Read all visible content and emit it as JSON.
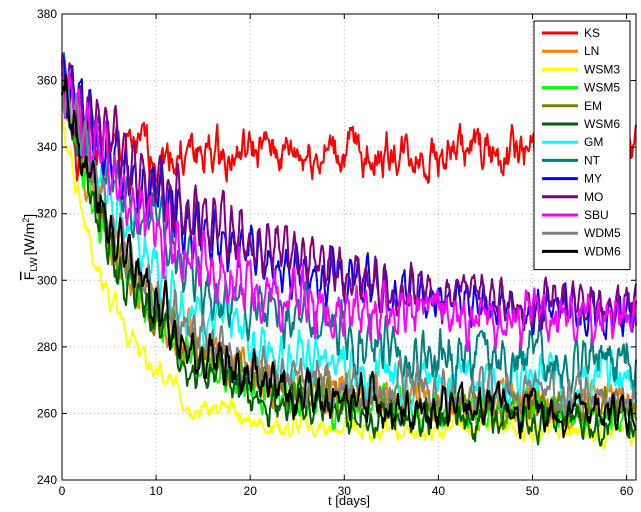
{
  "chart_data": {
    "type": "line",
    "xlabel": "t [days]",
    "ylabel": "F̄_LW [W/m²]",
    "ylabel_parts": {
      "main": "F",
      "sub": "LW",
      "unit": "[W/m",
      "sup": "2",
      "close": "]"
    },
    "xlim": [
      0,
      61
    ],
    "ylim": [
      240,
      380
    ],
    "xticks": [
      "0",
      "10",
      "20",
      "30",
      "40",
      "50",
      "60"
    ],
    "yticks": [
      "240",
      "260",
      "280",
      "300",
      "320",
      "340",
      "360",
      "380"
    ],
    "grid": true,
    "legend_position": "top-right",
    "series": [
      {
        "name": "KS",
        "color": "#ff0000",
        "start": 365,
        "end": 338,
        "tau": 0.6,
        "amp": 4.5,
        "osc": 1.5
      },
      {
        "name": "LN",
        "color": "#ff8000",
        "start": 362,
        "end": 263,
        "tau": 8,
        "amp": 3.5,
        "osc": 5
      },
      {
        "name": "WSM3",
        "color": "#ffff00",
        "start": 348,
        "end": 255,
        "tau": 6,
        "amp": 2.0,
        "osc": 2
      },
      {
        "name": "WSM5",
        "color": "#00ff00",
        "start": 360,
        "end": 260,
        "tau": 8,
        "amp": 3.0,
        "osc": 5
      },
      {
        "name": "EM",
        "color": "#808000",
        "start": 360,
        "end": 262,
        "tau": 8,
        "amp": 3.0,
        "osc": 4
      },
      {
        "name": "WSM6",
        "color": "#006000",
        "start": 360,
        "end": 258,
        "tau": 8,
        "amp": 3.0,
        "osc": 5
      },
      {
        "name": "GM",
        "color": "#00ffff",
        "start": 362,
        "end": 270,
        "tau": 10,
        "amp": 4.0,
        "osc": 5
      },
      {
        "name": "NT",
        "color": "#008080",
        "start": 362,
        "end": 275,
        "tau": 12,
        "amp": 4.5,
        "osc": 6
      },
      {
        "name": "MY",
        "color": "#0000ff",
        "start": 360,
        "end": 289,
        "tau": 15,
        "amp": 3.0,
        "osc": 8
      },
      {
        "name": "MO",
        "color": "#800080",
        "start": 360,
        "end": 288,
        "tau": 18,
        "amp": 3.0,
        "osc": 9
      },
      {
        "name": "SBU",
        "color": "#ff00ff",
        "start": 362,
        "end": 288,
        "tau": 10,
        "amp": 4.0,
        "osc": 7
      },
      {
        "name": "WDM5",
        "color": "#808080",
        "start": 360,
        "end": 265,
        "tau": 9,
        "amp": 3.5,
        "osc": 5
      },
      {
        "name": "WDM6",
        "color": "#000000",
        "start": 360,
        "end": 260,
        "tau": 9,
        "amp": 3.5,
        "osc": 5
      }
    ]
  }
}
